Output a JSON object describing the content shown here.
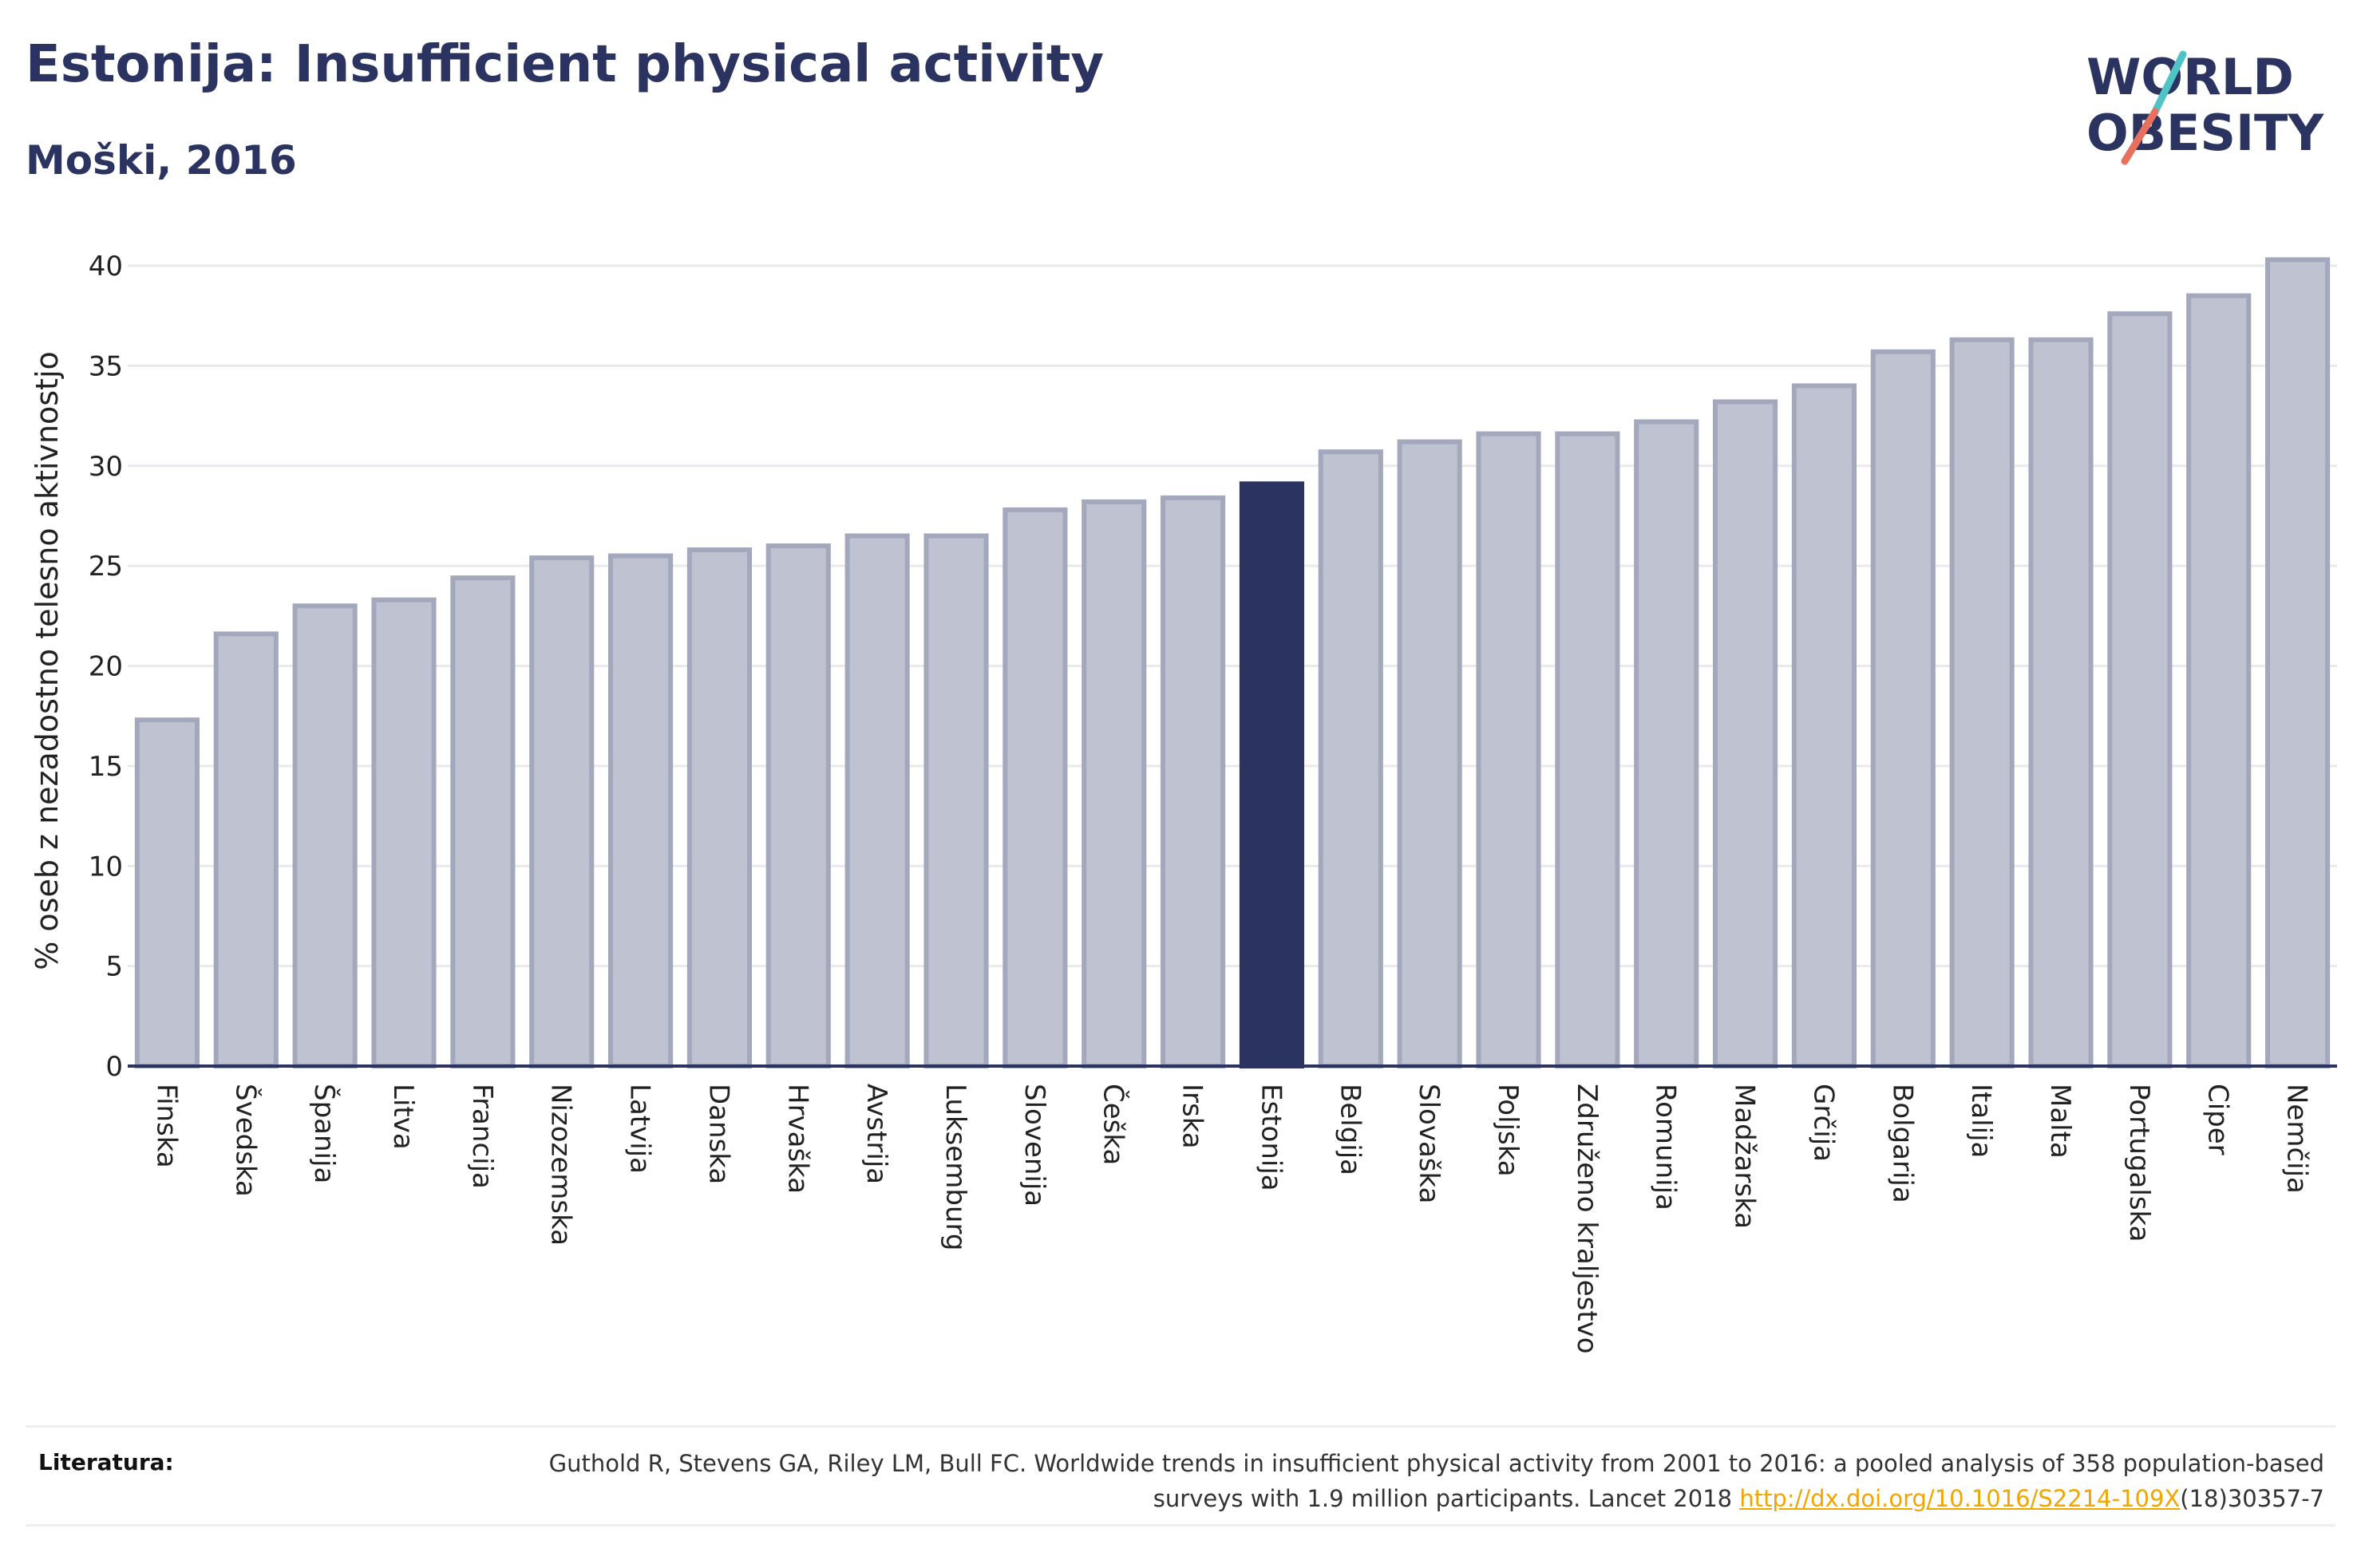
{
  "header": {
    "title": "Estonija: Insufficient physical activity",
    "subtitle": "Moški, 2016"
  },
  "logo": {
    "line1": "WORLD",
    "line2": "OBESITY",
    "slash_colors": [
      "#4fc3c6",
      "#e8705f"
    ]
  },
  "chart_data": {
    "type": "bar",
    "ylabel": "% oseb z nezadostno telesno aktivnostjo",
    "ylim": [
      0,
      40
    ],
    "yticks": [
      0,
      5,
      10,
      15,
      20,
      25,
      30,
      35,
      40
    ],
    "grid": true,
    "highlight": "Estonija",
    "colors": {
      "bar": "#bfc2d0",
      "bar_edge": "#a3a8bd",
      "highlight": "#2b3461",
      "axis": "#2b3461"
    },
    "categories": [
      "Finska",
      "Švedska",
      "Španija",
      "Litva",
      "Francija",
      "Nizozemska",
      "Latvija",
      "Danska",
      "Hrvaška",
      "Avstrija",
      "Luksemburg",
      "Slovenija",
      "Češka",
      "Irska",
      "Estonija",
      "Belgija",
      "Slovaška",
      "Poljska",
      "Združeno kraljestvo",
      "Romunija",
      "Madžarska",
      "Grčija",
      "Bolgarija",
      "Italija",
      "Malta",
      "Portugalska",
      "Ciper",
      "Nemčija"
    ],
    "values": [
      17.3,
      21.6,
      23.0,
      23.3,
      24.4,
      25.4,
      25.5,
      25.8,
      26.0,
      26.5,
      26.5,
      27.8,
      28.2,
      28.4,
      29.1,
      30.7,
      31.2,
      31.6,
      31.6,
      32.2,
      33.2,
      34.0,
      35.7,
      36.3,
      36.3,
      37.6,
      38.5,
      40.3
    ]
  },
  "footer": {
    "label": "Literatura:",
    "citation_part1": "Guthold R, Stevens GA, Riley LM, Bull FC. Worldwide trends in insufficient physical activity from 2001 to 2016: a pooled analysis of 358 population-based surveys with 1.9 million participants. Lancet 2018 ",
    "link": "http://dx.doi.org/10.1016/S2214-109X",
    "citation_part2": "(18)30357-7"
  }
}
